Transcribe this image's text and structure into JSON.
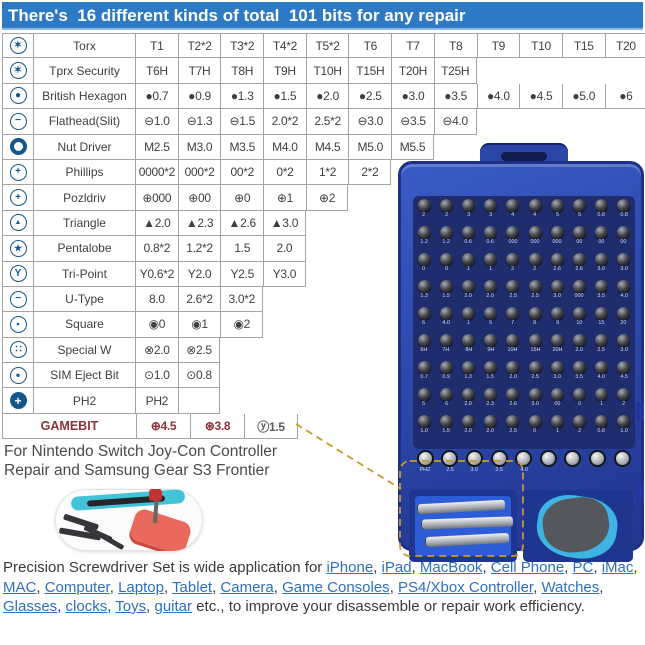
{
  "colors": {
    "banner_bg": "#2e79c3",
    "banner_text": "#ffffff",
    "table_border": "#a3a3a3",
    "table_text": "#3f3f3f",
    "icon_blue": "#15568a",
    "gamebit": "#8e3339",
    "link": "#2d6fc2",
    "dash": "#c79b2a",
    "box_blue": "#2b49ac",
    "box_inner": "#1f2c6e",
    "text_dark": "#4a4a4a"
  },
  "banner": {
    "text": "There's  16 different kinds of total  101 bits for any repair"
  },
  "table": {
    "icon_glyphs": {
      "torx": "✶",
      "security": "✶",
      "hexagon": "●",
      "flathead": "−",
      "nut": "",
      "phillips": "+",
      "pozidriv": "+",
      "triangle": "▲",
      "pentalobe": "★",
      "tripoint": "Y",
      "utype": "−",
      "square": "▪",
      "specialw": "∷",
      "sim": "•",
      "ph2": "+"
    },
    "rows": [
      {
        "icon": "torx",
        "label": "Torx",
        "cells": [
          "T1",
          "T2*2",
          "T3*2",
          "T4*2",
          "T5*2",
          "T6",
          "T7",
          "T8",
          "T9",
          "T10",
          "T15",
          "T20"
        ]
      },
      {
        "icon": "security",
        "label": "Tprx Security",
        "cells": [
          "T6H",
          "T7H",
          "T8H",
          "T9H",
          "T10H",
          "T15H",
          "T20H",
          "T25H"
        ]
      },
      {
        "icon": "hexagon",
        "label": "British Hexagon",
        "cells": [
          "●0.7",
          "●0.9",
          "●1.3",
          "●1.5",
          "●2.0",
          "●2.5",
          "●3.0",
          "●3.5",
          "●4.0",
          "●4.5",
          "●5.0",
          "●6"
        ]
      },
      {
        "icon": "flathead",
        "label": "Flathead(Slit)",
        "cells": [
          "⊖1.0",
          "⊖1.3",
          "⊖1.5",
          "2.0*2",
          "2.5*2",
          "⊖3.0",
          "⊖3.5",
          "⊖4.0"
        ]
      },
      {
        "icon": "nut",
        "label": "Nut Driver",
        "cells": [
          "M2.5",
          "M3.0",
          "M3.5",
          "M4.0",
          "M4.5",
          "M5.0",
          "M5.5"
        ]
      },
      {
        "icon": "phillips",
        "label": "Phillips",
        "cells": [
          "0000*2",
          "000*2",
          "00*2",
          "0*2",
          "1*2",
          "2*2"
        ]
      },
      {
        "icon": "pozidriv",
        "label": "Pozldriv",
        "cells": [
          "⊕000",
          "⊕00",
          "⊕0",
          "⊕1",
          "⊕2"
        ]
      },
      {
        "icon": "triangle",
        "label": "Triangle",
        "cells": [
          "▲2.0",
          "▲2.3",
          "▲2.6",
          "▲3.0"
        ]
      },
      {
        "icon": "pentalobe",
        "label": "Pentalobe",
        "cells": [
          "0.8*2",
          "1.2*2",
          "1.5",
          "2.0"
        ]
      },
      {
        "icon": "tripoint",
        "label": "Tri-Point",
        "cells": [
          "Y0.6*2",
          "Y2.0",
          "Y2.5",
          "Y3.0"
        ]
      },
      {
        "icon": "utype",
        "label": "U-Type",
        "cells": [
          "8.0",
          "2.6*2",
          "3.0*2"
        ]
      },
      {
        "icon": "square",
        "label": "Square",
        "cells": [
          "◉0",
          "◉1",
          "◉2"
        ]
      },
      {
        "icon": "specialw",
        "label": "Special W",
        "cells": [
          "⊗2.0",
          "⊗2.5"
        ]
      },
      {
        "icon": "sim",
        "label": "SIM Eject Bit",
        "cells": [
          "⊙1.0",
          "⊙0.8"
        ]
      },
      {
        "icon": "ph2",
        "label": "PH2",
        "cells": [
          "PH2",
          ""
        ]
      },
      {
        "gamebit": true,
        "label": "GAMEBIT",
        "cells": [
          "⊕4.5",
          "⊛3.8",
          "ⓨ1.5"
        ]
      }
    ]
  },
  "nintendo": {
    "line1": "For Nintendo Switch Joy-Con Controller",
    "line2": "Repair and Samsung Gear S3 Frontier"
  },
  "box": {
    "grid_rows": [
      [
        "2",
        "2",
        "3",
        "3",
        "4",
        "4",
        "5",
        "5",
        "0.8",
        "0.8"
      ],
      [
        "1.2",
        "1.2",
        "0.6",
        "0.6",
        "000",
        "000",
        "000",
        "00",
        "00",
        "00"
      ],
      [
        "0",
        "0",
        "1",
        "1",
        "2",
        "2",
        "2.6",
        "2.6",
        "3.0",
        "3.0"
      ],
      [
        "1.3",
        "1.5",
        "2.0",
        "2.0",
        "2.5",
        "2.5",
        "3.0",
        "000",
        "3.5",
        "4.0"
      ],
      [
        "6",
        "4.0",
        "1",
        "5",
        "7",
        "8",
        "9",
        "10",
        "15",
        "20"
      ],
      [
        "6H",
        "7H",
        "8H",
        "9H",
        "10H",
        "15H",
        "20H",
        "2.0",
        "2.5",
        "3.0"
      ],
      [
        "0.7",
        "0.9",
        "1.3",
        "1.5",
        "2.0",
        "2.5",
        "3.0",
        "3.5",
        "4.0",
        "4.5"
      ],
      [
        "5",
        "6",
        "2.0",
        "2.3",
        "2.6",
        "3.0",
        "00",
        "0",
        "1",
        "2"
      ],
      [
        "1.0",
        "1.5",
        "2.0",
        "2.0",
        "2.5",
        "0",
        "1",
        "2",
        "0.8",
        "1.0"
      ]
    ],
    "big_row": [
      "PH2",
      "2.5",
      "3.0",
      "3.5",
      "4.0",
      "",
      "",
      "",
      ""
    ]
  },
  "description": {
    "segments": [
      {
        "text": "Precision Screwdriver Set is wide application for ",
        "link": false
      },
      {
        "text": "iPhone",
        "link": true
      },
      {
        "text": ", ",
        "link": false
      },
      {
        "text": "iPad",
        "link": true
      },
      {
        "text": ", ",
        "link": false
      },
      {
        "text": "MacBook",
        "link": true
      },
      {
        "text": ", ",
        "link": false
      },
      {
        "text": "Cell Phone",
        "link": true
      },
      {
        "text": ", ",
        "link": false
      },
      {
        "text": "PC",
        "link": true
      },
      {
        "text": ", ",
        "link": false
      },
      {
        "text": "iMac",
        "link": true
      },
      {
        "text": ", ",
        "link": false
      },
      {
        "text": "MAC",
        "link": true
      },
      {
        "text": ", ",
        "link": false
      },
      {
        "text": "Computer",
        "link": true
      },
      {
        "text": ", ",
        "link": false
      },
      {
        "text": "Laptop",
        "link": true
      },
      {
        "text": ", ",
        "link": false
      },
      {
        "text": "Tablet",
        "link": true
      },
      {
        "text": ", ",
        "link": false
      },
      {
        "text": "Camera",
        "link": true
      },
      {
        "text": ", ",
        "link": false
      },
      {
        "text": "Game Consoles",
        "link": true
      },
      {
        "text": ", ",
        "link": false
      },
      {
        "text": "PS4/Xbox Controller",
        "link": true
      },
      {
        "text": ", ",
        "link": false
      },
      {
        "text": "Watches",
        "link": true
      },
      {
        "text": ", ",
        "link": false
      },
      {
        "text": "Glasses",
        "link": true
      },
      {
        "text": ", ",
        "link": false
      },
      {
        "text": "clocks",
        "link": true
      },
      {
        "text": ", ",
        "link": false
      },
      {
        "text": "Toys",
        "link": true
      },
      {
        "text": ", ",
        "link": false
      },
      {
        "text": "guitar",
        "link": true
      },
      {
        "text": " etc., to improve your disassemble or repair work efficiency.",
        "link": false
      }
    ]
  }
}
